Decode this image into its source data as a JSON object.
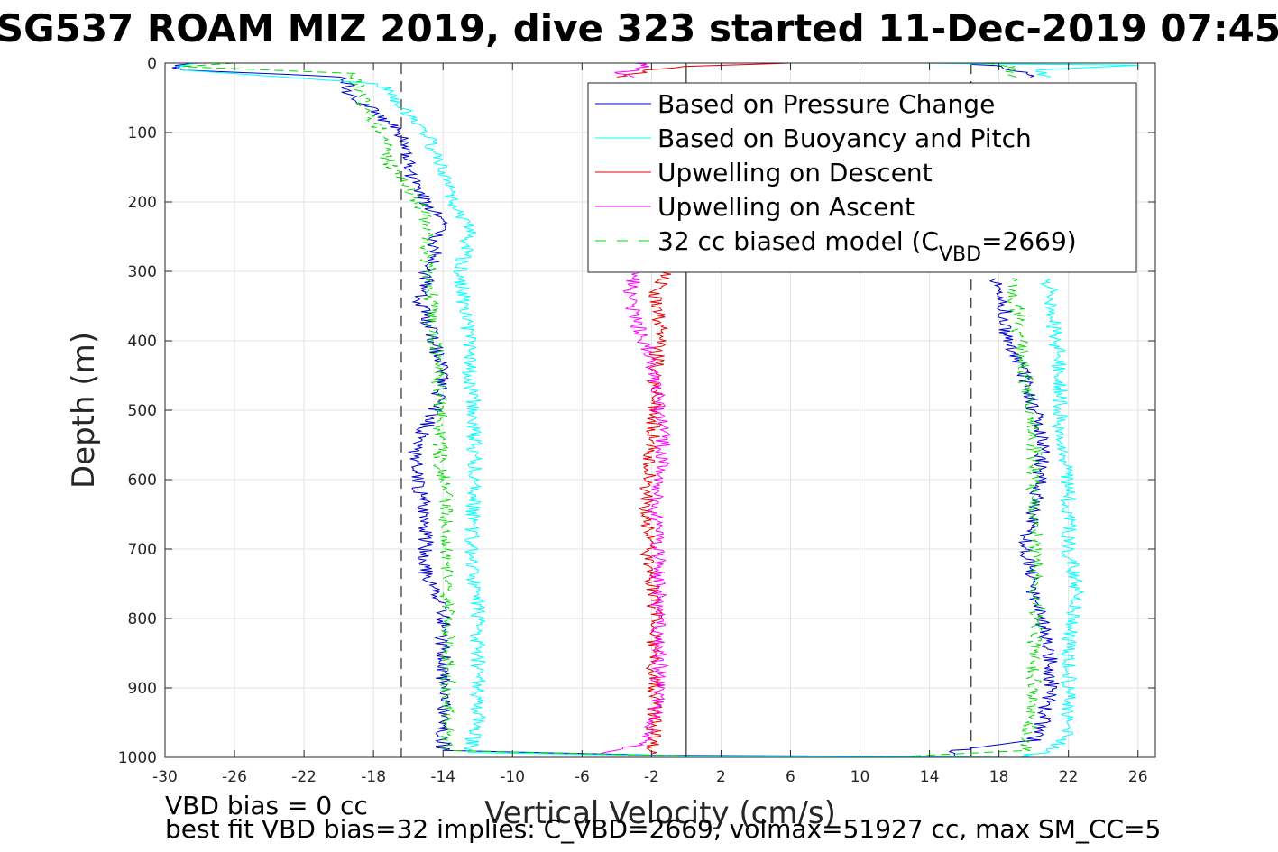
{
  "chart_data": {
    "type": "line",
    "title": "SG537 ROAM MIZ 2019, dive 323 started 11-Dec-2019 07:45",
    "xlabel": "Vertical Velocity (cm/s)",
    "ylabel": "Depth (m)",
    "xlim": [
      -30,
      27
    ],
    "ylim": [
      0,
      1000
    ],
    "y_reversed": true,
    "grid": true,
    "x_ticks": [
      "-30",
      "-26",
      "-22",
      "-18",
      "-14",
      "-10",
      "-6",
      "-2",
      "2",
      "6",
      "10",
      "14",
      "18",
      "22",
      "26"
    ],
    "y_ticks": [
      "0",
      "100",
      "200",
      "300",
      "400",
      "500",
      "600",
      "700",
      "800",
      "900",
      "1000"
    ],
    "legend_location": "top-right",
    "legend": [
      {
        "label": "Based on Pressure Change",
        "color": "#0000cc",
        "style": "solid"
      },
      {
        "label": "Based on Buoyancy and Pitch",
        "color": "#00ffff",
        "style": "solid"
      },
      {
        "label": "Upwelling on Descent",
        "color": "#e60000",
        "style": "solid"
      },
      {
        "label": "Upwelling on Ascent",
        "color": "#ff00ff",
        "style": "solid"
      },
      {
        "label_main": "32 cc biased model (C",
        "label_sub": "VBD",
        "label_tail": "=2669)",
        "color": "#00dd00",
        "style": "dashed"
      }
    ],
    "reference_lines": [
      {
        "x": -16.4,
        "style": "dashed",
        "color": "#000000"
      },
      {
        "x": 16.4,
        "style": "dashed",
        "color": "#000000"
      },
      {
        "x": 0,
        "style": "solid",
        "color": "#000000"
      }
    ],
    "series": [
      {
        "name": "Based on Pressure Change",
        "color": "#0000cc",
        "segments": [
          {
            "y": [
              0,
              5,
              10,
              20,
              40,
              60,
              80,
              100,
              120,
              150,
              180,
              200,
              230,
              260,
              280,
              300,
              320,
              340,
              360,
              380,
              400,
              450,
              500,
              550,
              600,
              650,
              700,
              740,
              760,
              800,
              850,
              900,
              950,
              990,
              997
            ],
            "x": [
              -28,
              -29.5,
              -29,
              -19.5,
              -19.5,
              -18.5,
              -17.5,
              -16.5,
              -16,
              -16,
              -15.5,
              -15,
              -14,
              -14.5,
              -14.5,
              -15,
              -15,
              -15.5,
              -15,
              -14.8,
              -14.5,
              -14,
              -14.5,
              -15.5,
              -15.5,
              -15,
              -15,
              -15,
              -14.5,
              -14,
              -14,
              -14,
              -14,
              -14,
              -1.5
            ]
          },
          {
            "y": [
              997,
              998,
              999,
              1000
            ],
            "x": [
              -1.5,
              8,
              14,
              16
            ]
          },
          {
            "y": [
              1000,
              990,
              985,
              975,
              950,
              900,
              860,
              800,
              760,
              720,
              700,
              650,
              600,
              560,
              540,
              500,
              450,
              420,
              400,
              380,
              350,
              330,
              310
            ],
            "x": [
              16,
              15.5,
              17,
              20,
              20.5,
              21,
              21,
              20.5,
              20,
              19.8,
              19.5,
              20,
              20.3,
              20.5,
              20.5,
              20,
              19.5,
              19,
              18.5,
              18.3,
              18.3,
              18.2,
              17.8
            ]
          },
          {
            "y": [
              2,
              5,
              10,
              15,
              20
            ],
            "x": [
              16.8,
              18,
              19,
              19.5,
              19.8
            ]
          }
        ]
      },
      {
        "name": "Based on Buoyancy and Pitch",
        "color": "#00ffff",
        "segments": [
          {
            "y": [
              0,
              5,
              10,
              30,
              60,
              100,
              150,
              200,
              240,
              280,
              300,
              350,
              400,
              450,
              500,
              550,
              600,
              650,
              700,
              740,
              760,
              800,
              850,
              900,
              950,
              993,
              998
            ],
            "x": [
              -28,
              -29.5,
              -29,
              -17.5,
              -16.5,
              -15,
              -14,
              -13.5,
              -12.5,
              -12.8,
              -13,
              -12.8,
              -12.5,
              -12.5,
              -12.2,
              -12.2,
              -12.2,
              -12.3,
              -12.3,
              -12.3,
              -12,
              -12,
              -12,
              -12,
              -12,
              -12.5,
              0
            ]
          },
          {
            "y": [
              998,
              999,
              1000
            ],
            "x": [
              0,
              15,
              19
            ]
          },
          {
            "y": [
              1000,
              990,
              970,
              950,
              900,
              850,
              800,
              760,
              700,
              650,
              600,
              550,
              500,
              450,
              400,
              350,
              330,
              310
            ],
            "x": [
              19,
              21,
              22,
              22,
              22,
              22,
              22.2,
              22.5,
              22,
              22,
              22,
              21.5,
              21.5,
              21.5,
              21.3,
              21,
              21,
              20.8
            ]
          },
          {
            "y": [
              0,
              3,
              10,
              20
            ],
            "x": [
              13,
              26,
              20,
              21
            ]
          }
        ]
      },
      {
        "name": "Upwelling on Descent",
        "color": "#e60000",
        "segments": [
          {
            "y": [
              300,
              340,
              380,
              420,
              460,
              500,
              550,
              600,
              650,
              700,
              750,
              800,
              850,
              900,
              950,
              995
            ],
            "x": [
              -1.2,
              -1.8,
              -1.5,
              -1.7,
              -1.8,
              -1.8,
              -2,
              -2.2,
              -2.3,
              -2.2,
              -2,
              -1.8,
              -1.9,
              -1.8,
              -1.8,
              -2
            ]
          },
          {
            "y": [
              0,
              3,
              5,
              10,
              15,
              20
            ],
            "x": [
              6,
              2,
              -0.5,
              -2,
              -3,
              -4
            ]
          }
        ]
      },
      {
        "name": "Upwelling on Ascent",
        "color": "#ff00ff",
        "segments": [
          {
            "y": [
              300,
              340,
              380,
              420,
              460,
              500,
              550,
              600,
              650,
              700,
              750,
              800,
              850,
              900,
              950,
              980,
              995
            ],
            "x": [
              -3,
              -3.2,
              -2.8,
              -2,
              -1.8,
              -1.5,
              -1.3,
              -1.5,
              -1.8,
              -1.6,
              -1.6,
              -1.6,
              -1.5,
              -1.6,
              -1.8,
              -2.5,
              -5
            ]
          },
          {
            "y": [
              0,
              5,
              10,
              15,
              20
            ],
            "x": [
              -3,
              -2,
              -3,
              -4,
              -3
            ]
          }
        ]
      },
      {
        "name": "32 cc biased model (C_VBD=2669)",
        "color": "#00dd00",
        "style": "dashed",
        "segments": [
          {
            "y": [
              0,
              5,
              15,
              30,
              60,
              100,
              140,
              180,
              220,
              260,
              300,
              350,
              400,
              450,
              500,
              550,
              600,
              650,
              700,
              750,
              800,
              850,
              900,
              950,
              990,
              998
            ],
            "x": [
              -26,
              -29,
              -19,
              -19,
              -18.5,
              -17.5,
              -17.2,
              -16,
              -15,
              -15,
              -14.8,
              -14.7,
              -14.5,
              -14.2,
              -14.2,
              -14.2,
              -14,
              -13.8,
              -13.8,
              -13.8,
              -13.7,
              -13.7,
              -13.7,
              -13.7,
              -13.7,
              0
            ]
          },
          {
            "y": [
              998,
              990,
              950,
              900,
              850,
              800,
              750,
              700,
              650,
              600,
              550,
              500,
              450,
              400,
              350,
              310
            ],
            "x": [
              13,
              19.5,
              19.8,
              20,
              20,
              20.2,
              20.2,
              20.2,
              20,
              20,
              20,
              19.8,
              19.5,
              19.2,
              19,
              18.8
            ]
          },
          {
            "y": [
              0,
              5,
              10,
              15,
              20
            ],
            "x": [
              17,
              19,
              18.5,
              18.5,
              19
            ]
          }
        ]
      }
    ]
  },
  "footer": {
    "line1": "VBD bias = 0 cc",
    "line2": "best fit VBD bias=32 implies: C_VBD=2669, volmax=51927 cc, max SM_CC=5"
  }
}
